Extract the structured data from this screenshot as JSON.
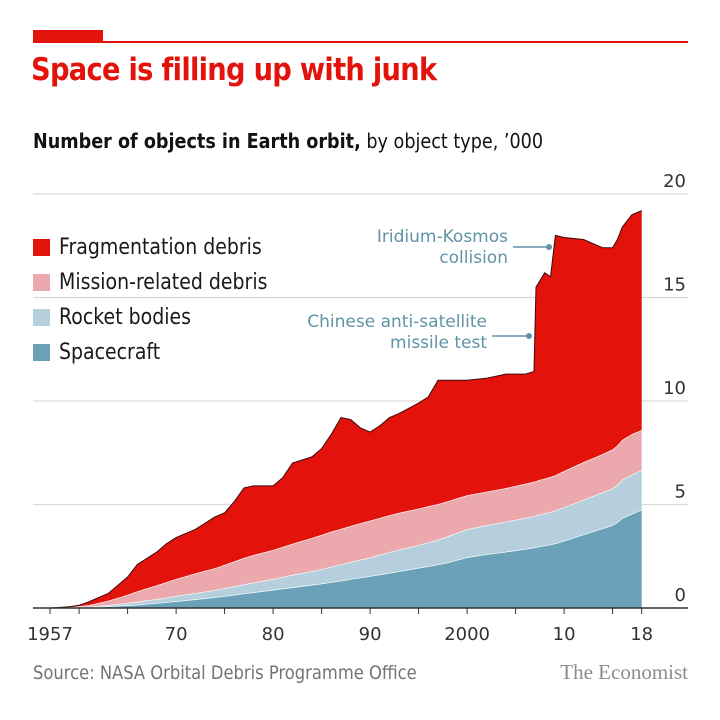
{
  "header": {
    "title": "Space is filling up with junk",
    "subtitle_bold": "Number of objects in Earth orbit,",
    "subtitle_rest": " by object type, ’000"
  },
  "footer": {
    "source": "Source: NASA Orbital Debris Programme Office",
    "brand": "The Economist"
  },
  "colors": {
    "accent": "#e3120b",
    "fragmentation": "#e3120b",
    "mission": "#eba9ad",
    "rocket": "#b5cfdd",
    "spacecraft": "#6aa1b9",
    "annotation": "#5e93a8"
  },
  "chart_data": {
    "type": "area",
    "stacked": true,
    "title": "Space is filling up with junk",
    "subtitle": "Number of objects in Earth orbit, by object type, ’000",
    "xlabel": "",
    "ylabel": "",
    "xlim": [
      1956,
      2018.4
    ],
    "ylim": [
      0,
      20
    ],
    "x_ticks": [
      1957,
      1960,
      1965,
      1970,
      1975,
      1980,
      1985,
      1990,
      1995,
      2000,
      2005,
      2010,
      2015,
      2018
    ],
    "x_tick_labels": [
      {
        "year": 1957,
        "label": "1957"
      },
      {
        "year": 1970,
        "label": "70"
      },
      {
        "year": 1980,
        "label": "80"
      },
      {
        "year": 1990,
        "label": "90"
      },
      {
        "year": 2000,
        "label": "2000"
      },
      {
        "year": 2010,
        "label": "10"
      },
      {
        "year": 2018,
        "label": "18"
      }
    ],
    "y_ticks": [
      0,
      5,
      10,
      15,
      20
    ],
    "grid": true,
    "y_axis_side": "right",
    "legend_position": "top-left",
    "x": [
      1957,
      1959,
      1960,
      1961,
      1962,
      1963,
      1964,
      1965,
      1966,
      1967,
      1968,
      1969,
      1970,
      1972,
      1974,
      1975,
      1976,
      1977,
      1978,
      1980,
      1981,
      1982,
      1984,
      1985,
      1986,
      1987,
      1988,
      1989,
      1990,
      1991,
      1992,
      1993,
      1995,
      1996,
      1997,
      1998,
      2000,
      2002,
      2004,
      2006,
      2006.9,
      2007.1,
      2007.5,
      2008,
      2008.6,
      2009.1,
      2010,
      2012,
      2014,
      2015,
      2015.5,
      2016,
      2017,
      2018
    ],
    "series": [
      {
        "name": "Spacecraft",
        "values": [
          0,
          0.01,
          0.02,
          0.03,
          0.05,
          0.08,
          0.1,
          0.13,
          0.16,
          0.2,
          0.24,
          0.28,
          0.33,
          0.42,
          0.52,
          0.58,
          0.64,
          0.7,
          0.76,
          0.88,
          0.94,
          1.0,
          1.12,
          1.18,
          1.25,
          1.32,
          1.4,
          1.47,
          1.54,
          1.62,
          1.7,
          1.78,
          1.94,
          2.02,
          2.1,
          2.2,
          2.45,
          2.6,
          2.72,
          2.85,
          2.92,
          2.94,
          2.98,
          3.02,
          3.07,
          3.12,
          3.25,
          3.55,
          3.85,
          4.0,
          4.15,
          4.35,
          4.55,
          4.75
        ]
      },
      {
        "name": "Rocket bodies",
        "values": [
          0,
          0.01,
          0.02,
          0.03,
          0.05,
          0.07,
          0.09,
          0.11,
          0.14,
          0.17,
          0.19,
          0.22,
          0.25,
          0.3,
          0.35,
          0.38,
          0.41,
          0.44,
          0.47,
          0.52,
          0.56,
          0.6,
          0.66,
          0.7,
          0.74,
          0.78,
          0.82,
          0.86,
          0.9,
          0.95,
          1.0,
          1.04,
          1.1,
          1.15,
          1.2,
          1.26,
          1.35,
          1.4,
          1.45,
          1.5,
          1.52,
          1.53,
          1.54,
          1.55,
          1.57,
          1.59,
          1.62,
          1.68,
          1.74,
          1.78,
          1.8,
          1.85,
          1.9,
          1.9
        ]
      },
      {
        "name": "Mission-related debris",
        "values": [
          0,
          0.02,
          0.04,
          0.08,
          0.14,
          0.2,
          0.3,
          0.4,
          0.5,
          0.58,
          0.66,
          0.75,
          0.82,
          0.95,
          1.05,
          1.12,
          1.2,
          1.28,
          1.33,
          1.4,
          1.45,
          1.5,
          1.6,
          1.65,
          1.7,
          1.72,
          1.74,
          1.76,
          1.78,
          1.78,
          1.78,
          1.78,
          1.76,
          1.75,
          1.72,
          1.7,
          1.65,
          1.62,
          1.62,
          1.65,
          1.66,
          1.66,
          1.67,
          1.68,
          1.69,
          1.7,
          1.75,
          1.82,
          1.85,
          1.88,
          1.9,
          1.92,
          1.95,
          1.95
        ]
      },
      {
        "name": "Fragmentation debris",
        "values": [
          0,
          0.02,
          0.05,
          0.16,
          0.26,
          0.35,
          0.61,
          0.86,
          1.3,
          1.45,
          1.61,
          1.85,
          2.0,
          2.13,
          2.48,
          2.52,
          2.89,
          3.38,
          3.34,
          3.1,
          3.35,
          3.9,
          3.92,
          4.17,
          4.7,
          5.38,
          5.14,
          4.61,
          4.28,
          4.45,
          4.72,
          4.8,
          5.1,
          5.28,
          5.98,
          5.84,
          5.55,
          5.48,
          5.51,
          5.3,
          5.32,
          9.37,
          9.61,
          9.95,
          9.67,
          11.59,
          11.28,
          10.75,
          9.96,
          9.74,
          9.95,
          10.28,
          10.6,
          10.6
        ]
      }
    ],
    "totals_approx": {
      "1970": 3.4,
      "1980": 5.9,
      "1987": 9.1,
      "1990": 8.5,
      "2000": 11.0,
      "2006": 11.3,
      "2007": 15.5,
      "2009": 18.0,
      "2015": 17.4,
      "2018": 19.2
    },
    "annotations": [
      {
        "text_lines": [
          "Iridium-Kosmos",
          "collision"
        ],
        "year": 2009,
        "value": 17.8
      },
      {
        "text_lines": [
          "Chinese anti-satellite",
          "missile test"
        ],
        "year": 2007,
        "value": 13.0
      }
    ]
  }
}
